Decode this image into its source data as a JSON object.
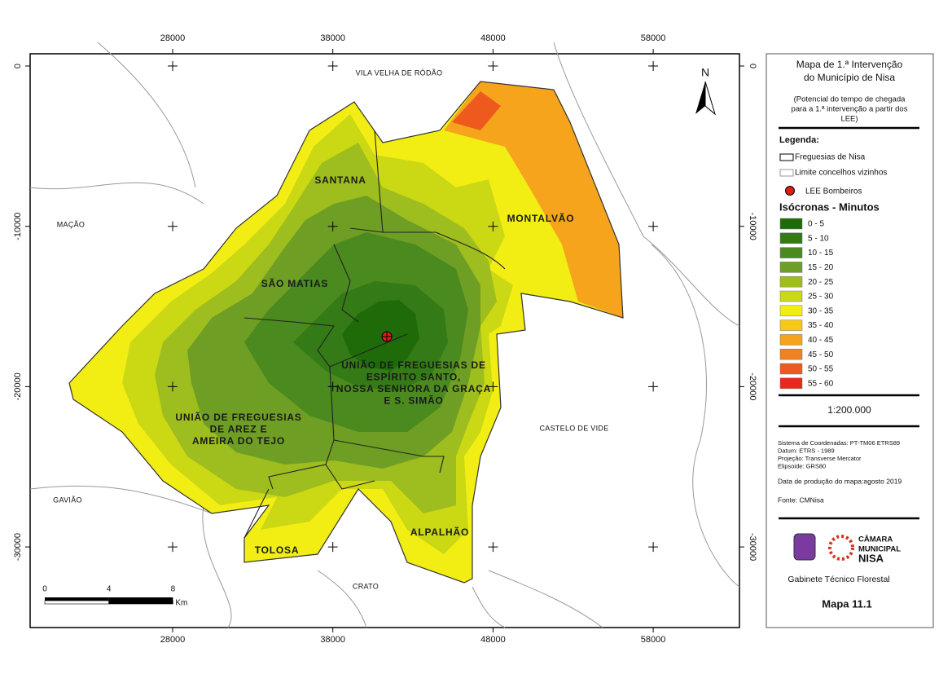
{
  "map": {
    "x_ticks": [
      28000,
      38000,
      48000,
      58000
    ],
    "y_ticks": [
      0,
      -10000,
      -20000,
      -30000
    ],
    "north": "N",
    "places": [
      {
        "label": "VILA VELHA DE RÓDÃO"
      },
      {
        "label": "MAÇÃO"
      },
      {
        "label": "CASTELO DE VIDE"
      },
      {
        "label": "GAVIÃO"
      },
      {
        "label": "CRATO"
      }
    ],
    "parishes": [
      {
        "lines": [
          "SANTANA"
        ]
      },
      {
        "lines": [
          "MONTALVÃO"
        ]
      },
      {
        "lines": [
          "SÃO MATIAS"
        ]
      },
      {
        "lines": [
          "UNIÃO DE FREGUESIAS DE",
          "ESPÍRITO SANTO,",
          "NOSSA SENHORA DA GRAÇA",
          "E S. SIMÃO"
        ]
      },
      {
        "lines": [
          "UNIÃO DE FREGUESIAS",
          "DE AREZ E",
          "AMEIRA DO TEJO"
        ]
      },
      {
        "lines": [
          "TOLOSA"
        ]
      },
      {
        "lines": [
          "ALPALHÃO"
        ]
      }
    ],
    "scale_bar": {
      "ticks": [
        0,
        4,
        8
      ],
      "unit": "Km"
    }
  },
  "panel": {
    "title": [
      "Mapa de 1.ª Intervenção",
      "do Município de Nisa"
    ],
    "subtitle": [
      "(Potencial do tempo de chegada",
      "para a 1.ª intervenção a partir dos",
      "LEE)"
    ],
    "legend_heading": "Legenda:",
    "items": [
      "Freguesias de Nisa",
      "Limite concelhos vizinhos",
      "LEE Bombeiros"
    ],
    "isochrones_title": "Isócronas - Minutos",
    "classes": [
      {
        "label": "0 - 5",
        "color": "#1f6b0a"
      },
      {
        "label": "5 - 10",
        "color": "#347a16"
      },
      {
        "label": "10 - 15",
        "color": "#4a8a1e"
      },
      {
        "label": "15 - 20",
        "color": "#6e9e24"
      },
      {
        "label": "20 - 25",
        "color": "#9ebd1e"
      },
      {
        "label": "25 - 30",
        "color": "#cbd814"
      },
      {
        "label": "30 - 35",
        "color": "#f2ee14"
      },
      {
        "label": "35 - 40",
        "color": "#f7c816"
      },
      {
        "label": "40 - 45",
        "color": "#f5a41c"
      },
      {
        "label": "45 - 50",
        "color": "#f08222"
      },
      {
        "label": "50 - 55",
        "color": "#ee5a1e"
      },
      {
        "label": "55 - 60",
        "color": "#e8281c"
      }
    ],
    "scale": "1:200.000",
    "metadata": [
      "Sistema de Coordenadas: PT-TM06 ETRS89",
      "Datum:  ETRS - 1989",
      "Projeção: Transverse Mercator",
      "Elipsoide: GRS80"
    ],
    "date": "Data de produção do mapa:agosto 2019",
    "source": "Fonte: CMNisa",
    "logo": [
      "CÂMARA",
      "MUNICIPAL",
      "NISA"
    ],
    "department": "Gabinete Técnico Florestal",
    "map_number": "Mapa 11.1"
  }
}
